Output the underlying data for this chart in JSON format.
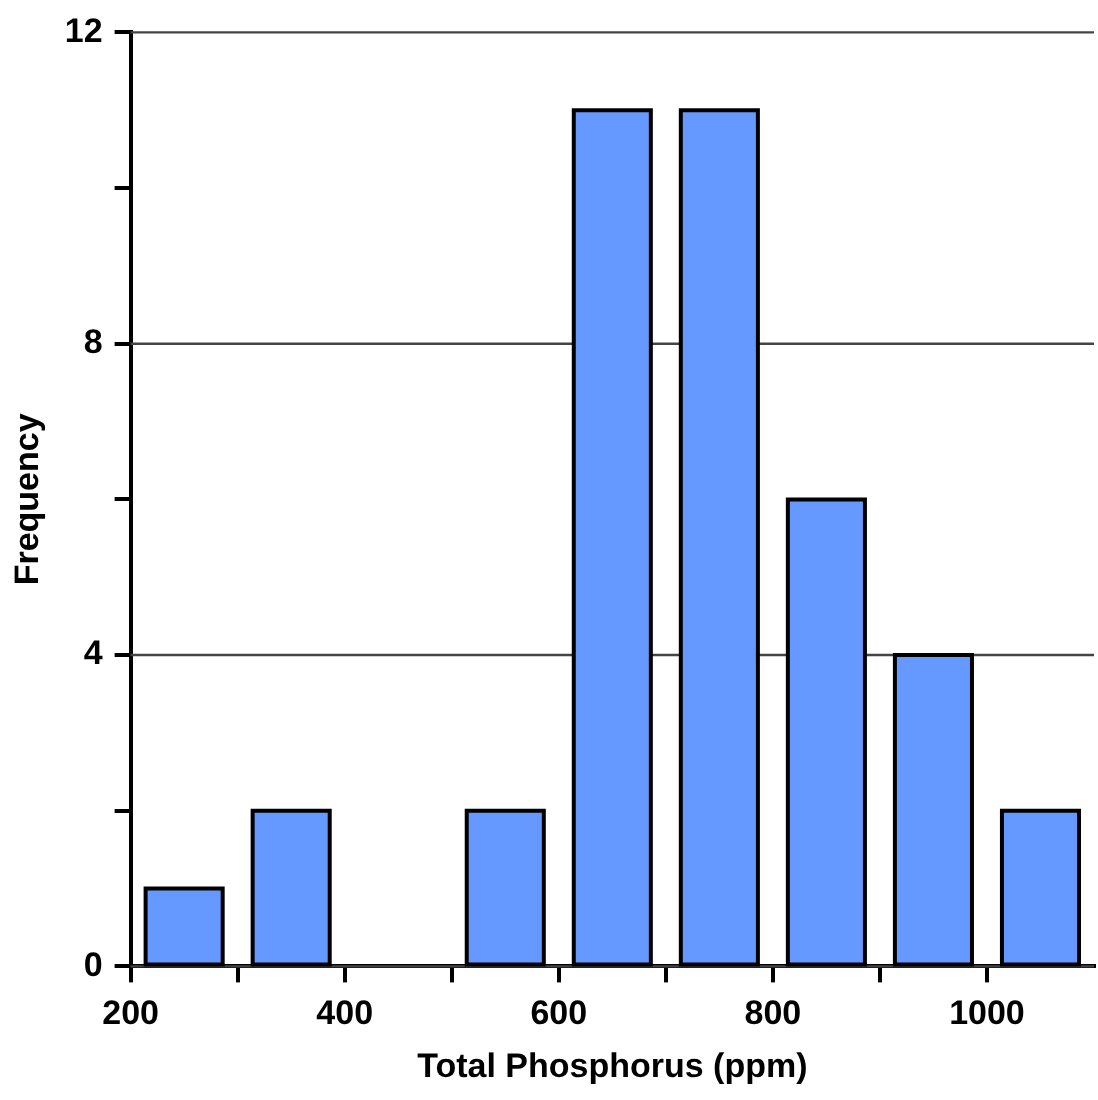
{
  "chart_data": {
    "type": "bar",
    "xlabel": "Total Phosphorus (ppm)",
    "ylabel": "Frequency",
    "x": [
      250,
      350,
      450,
      550,
      650,
      750,
      850,
      950,
      1050
    ],
    "values": [
      1,
      2,
      0,
      2,
      11,
      11,
      6,
      4,
      2
    ],
    "color": "#6699ff",
    "xlim": [
      200,
      1100
    ],
    "xticks": [
      200,
      {
        "value": 300,
        "label": null
      },
      400,
      {
        "value": 500,
        "label": null
      },
      600,
      {
        "value": 700,
        "label": null
      },
      800,
      {
        "value": 900,
        "label": null
      },
      1000
    ],
    "ylim": [
      0,
      12
    ],
    "yticks": [
      0,
      {
        "value": 2,
        "label": null
      },
      4,
      {
        "value": 6,
        "label": null
      },
      8,
      {
        "value": 10,
        "label": null
      },
      12
    ],
    "grid": "y",
    "legend": false
  }
}
